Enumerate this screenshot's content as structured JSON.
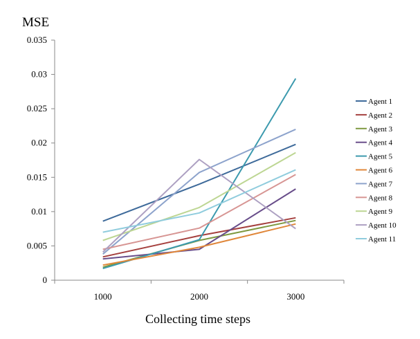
{
  "chart_data": {
    "type": "line",
    "title": "",
    "xlabel": "Collecting time steps",
    "ylabel": "MSE",
    "categories": [
      "1000",
      "2000",
      "3000"
    ],
    "ylim": [
      0,
      0.035
    ],
    "yticks": [
      "0",
      "0.005",
      "0.01",
      "0.015",
      "0.02",
      "0.025",
      "0.03",
      "0.035"
    ],
    "grid": false,
    "legend": "right",
    "series": [
      {
        "name": "Agent 1",
        "color": "#3E6A9A",
        "values": [
          0.0086,
          0.014,
          0.0198
        ]
      },
      {
        "name": "Agent 2",
        "color": "#A5403E",
        "values": [
          0.0034,
          0.0065,
          0.0091
        ]
      },
      {
        "name": "Agent 3",
        "color": "#7E9940",
        "values": [
          0.0019,
          0.0058,
          0.0087
        ]
      },
      {
        "name": "Agent 4",
        "color": "#684D8A",
        "values": [
          0.0031,
          0.0045,
          0.0133
        ]
      },
      {
        "name": "Agent 5",
        "color": "#3C9AAE",
        "values": [
          0.0017,
          0.0059,
          0.0294
        ]
      },
      {
        "name": "Agent 6",
        "color": "#E0873A",
        "values": [
          0.0022,
          0.0048,
          0.0082
        ]
      },
      {
        "name": "Agent 7",
        "color": "#8DA3CC",
        "values": [
          0.0038,
          0.0157,
          0.022
        ]
      },
      {
        "name": "Agent 8",
        "color": "#D79593",
        "values": [
          0.0045,
          0.0076,
          0.0154
        ]
      },
      {
        "name": "Agent 9",
        "color": "#BDD693",
        "values": [
          0.0058,
          0.0106,
          0.0186
        ]
      },
      {
        "name": "Agent 10",
        "color": "#ADA0C2",
        "values": [
          0.0041,
          0.0176,
          0.0075
        ]
      },
      {
        "name": "Agent 11",
        "color": "#8FCCDD",
        "values": [
          0.007,
          0.0098,
          0.0161
        ]
      }
    ]
  }
}
